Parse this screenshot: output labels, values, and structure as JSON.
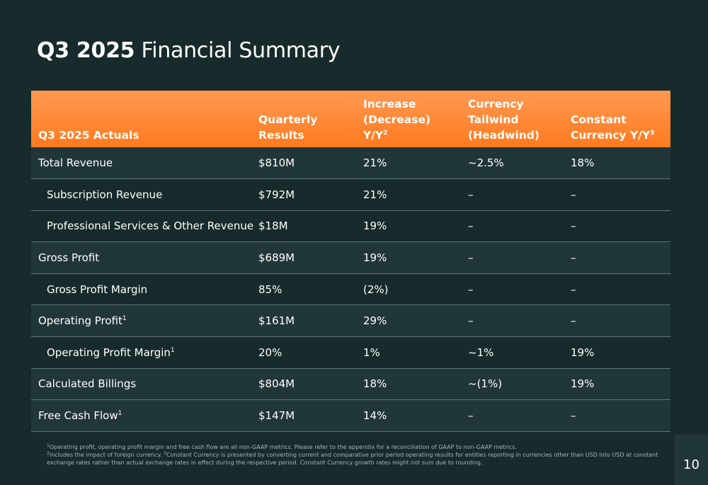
{
  "title": {
    "bold": "Q3 2025",
    "rest": "Financial Summary"
  },
  "table": {
    "headers": [
      {
        "text": "Q3 2025 Actuals",
        "sup": ""
      },
      {
        "text": "Quarterly Results",
        "sup": ""
      },
      {
        "text": "Increase (Decrease) Y/Y",
        "sup": "2"
      },
      {
        "text": "Currency Tailwind (Headwind)",
        "sup": ""
      },
      {
        "text": "Constant Currency Y/Y",
        "sup": "3"
      }
    ],
    "rows": [
      {
        "label": "Total Revenue",
        "sup": "",
        "indent": false,
        "band": true,
        "cells": [
          "$810M",
          "21%",
          "~2.5%",
          "18%"
        ]
      },
      {
        "label": "Subscription Revenue",
        "sup": "",
        "indent": true,
        "band": false,
        "cells": [
          "$792M",
          "21%",
          "–",
          "–"
        ]
      },
      {
        "label": "Professional Services & Other Revenue",
        "sup": "",
        "indent": true,
        "band": false,
        "cells": [
          "$18M",
          "19%",
          "–",
          "–"
        ]
      },
      {
        "label": "Gross Profit",
        "sup": "",
        "indent": false,
        "band": true,
        "cells": [
          "$689M",
          "19%",
          "–",
          "–"
        ]
      },
      {
        "label": "Gross Profit Margin",
        "sup": "",
        "indent": true,
        "band": false,
        "cells": [
          "85%",
          "(2%)",
          "–",
          "–"
        ]
      },
      {
        "label": "Operating Profit",
        "sup": "1",
        "indent": false,
        "band": true,
        "cells": [
          "$161M",
          "29%",
          "–",
          "–"
        ]
      },
      {
        "label": "Operating Profit Margin",
        "sup": "1",
        "indent": true,
        "band": false,
        "cells": [
          "20%",
          "1%",
          "~1%",
          "19%"
        ]
      },
      {
        "label": "Calculated Billings",
        "sup": "",
        "indent": false,
        "band": true,
        "cells": [
          "$804M",
          "18%",
          "~(1%)",
          "19%"
        ]
      },
      {
        "label": "Free Cash Flow",
        "sup": "1",
        "indent": false,
        "band": true,
        "cells": [
          "$147M",
          "14%",
          "–",
          "–"
        ]
      }
    ]
  },
  "footnotes": {
    "line1_sup": "1",
    "line1": "Operating profit, operating profit margin and free cash flow are all non-GAAP metrics. Please refer to the appendix for a reconciliation of GAAP to non-GAAP metrics.",
    "line2_sup": "2",
    "line2a": "Includes the impact of foreign currency.",
    "line2_sup3": "3",
    "line2b": "Constant Currency is presented by converting current and comparative prior period operating results for entities reporting in currencies other than USD into USD at constant exchange rates rather than actual exchange rates in effect during the respective period. Constant Currency growth rates might not sum due to rounding."
  },
  "page_number": "10"
}
